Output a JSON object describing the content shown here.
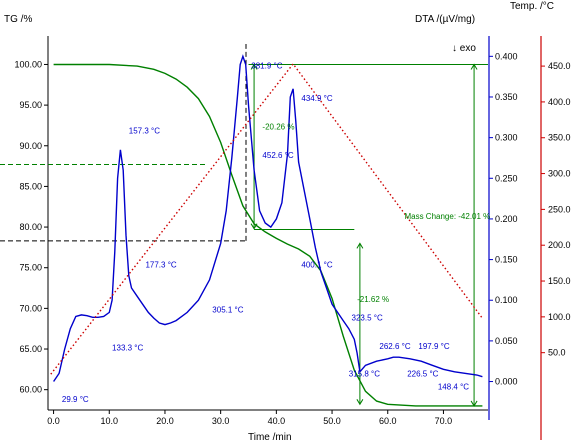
{
  "chart_data": {
    "type": "line",
    "title": "",
    "xlabel": "Time /min",
    "xlim": [
      -1,
      78
    ],
    "x_ticks": [
      "0.0",
      "10.0",
      "20.0",
      "30.0",
      "40.0",
      "50.0",
      "60.0",
      "70.0"
    ],
    "x_tick_values": [
      0,
      10,
      20,
      30,
      40,
      50,
      60,
      70
    ],
    "axes": {
      "tg": {
        "label": "TG /%",
        "color": "#000000",
        "ylim": [
          57.5,
          103.5
        ],
        "ticks": [
          "60.00",
          "65.00",
          "70.00",
          "75.00",
          "80.00",
          "85.00",
          "90.00",
          "95.00",
          "100.00"
        ],
        "tick_values": [
          60,
          65,
          70,
          75,
          80,
          85,
          90,
          95,
          100
        ]
      },
      "dta": {
        "label": "DTA /(µV/mg)",
        "color": "#0000cc",
        "ylim": [
          -0.035,
          0.425
        ],
        "ticks": [
          "0.000",
          "0.050",
          "0.100",
          "0.150",
          "0.200",
          "0.250",
          "0.300",
          "0.350",
          "0.400"
        ],
        "tick_values": [
          0,
          0.05,
          0.1,
          0.15,
          0.2,
          0.25,
          0.3,
          0.35,
          0.4
        ]
      },
      "temp": {
        "label": "Temp. /°C",
        "color": "#cc0000",
        "ylim": [
          -30,
          492
        ],
        "ticks": [
          "50.0",
          "100.0",
          "150.0",
          "200.0",
          "250.0",
          "300.0",
          "350.0",
          "400.0",
          "450.0"
        ],
        "tick_values": [
          50,
          100,
          150,
          200,
          250,
          300,
          350,
          400,
          450
        ]
      }
    },
    "exo_label": "↓ exo",
    "series": [
      {
        "axis": "tg",
        "color": "#008000",
        "style": "solid",
        "x": [
          0,
          5,
          10,
          15,
          18,
          20,
          22,
          24,
          26,
          28,
          30,
          32,
          34,
          36,
          38,
          40,
          42,
          44,
          46,
          48,
          50,
          52,
          54,
          56,
          58,
          60,
          65,
          70,
          75,
          77
        ],
        "values": [
          100,
          100,
          100,
          99.8,
          99.4,
          98.9,
          98.2,
          97.2,
          95.8,
          93.6,
          90.4,
          86.4,
          82.6,
          80.4,
          79.4,
          78.6,
          77.9,
          77.3,
          76.4,
          74.6,
          71.2,
          66.6,
          62.4,
          59.8,
          58.6,
          58.2,
          58.0,
          58.0,
          58.0,
          58.0
        ]
      },
      {
        "axis": "dta",
        "color": "#0000cc",
        "style": "solid",
        "x": [
          0,
          1,
          2,
          3,
          4,
          5,
          6,
          7,
          8,
          9,
          10,
          10.5,
          11,
          11.5,
          12,
          12.5,
          13,
          13.5,
          14,
          15,
          16,
          17,
          18,
          19,
          20,
          21,
          22,
          24,
          26,
          28,
          30,
          31,
          32,
          33,
          33.5,
          34,
          34.5,
          35,
          36,
          37,
          38,
          39,
          40,
          41,
          42,
          42.5,
          43,
          43.5,
          44,
          45,
          46,
          47,
          48,
          49,
          50,
          51,
          52,
          53,
          54,
          54.5,
          55,
          56,
          58,
          60,
          61,
          62,
          64,
          66,
          68,
          70,
          72,
          74,
          76,
          77
        ],
        "values": [
          0.0,
          0.01,
          0.04,
          0.065,
          0.08,
          0.082,
          0.081,
          0.079,
          0.079,
          0.08,
          0.085,
          0.1,
          0.16,
          0.25,
          0.285,
          0.26,
          0.18,
          0.13,
          0.115,
          0.105,
          0.095,
          0.085,
          0.078,
          0.072,
          0.07,
          0.072,
          0.075,
          0.085,
          0.1,
          0.125,
          0.17,
          0.21,
          0.275,
          0.35,
          0.39,
          0.4,
          0.39,
          0.34,
          0.26,
          0.21,
          0.195,
          0.19,
          0.2,
          0.22,
          0.28,
          0.35,
          0.36,
          0.32,
          0.27,
          0.235,
          0.2,
          0.165,
          0.135,
          0.115,
          0.095,
          0.085,
          0.075,
          0.065,
          0.052,
          0.035,
          0.012,
          0.02,
          0.025,
          0.028,
          0.03,
          0.03,
          0.028,
          0.025,
          0.02,
          0.015,
          0.012,
          0.01,
          0.008,
          0.006
        ]
      },
      {
        "axis": "temp",
        "color": "#cc0000",
        "style": "dotted",
        "x": [
          -0.5,
          43,
          77
        ],
        "values": [
          20,
          453,
          98
        ]
      }
    ],
    "annotations": [
      {
        "text": "29.9 °C",
        "x": 1.5,
        "axis": "dta",
        "y": -0.025,
        "color": "#0000cc"
      },
      {
        "text": "133.3 °C",
        "x": 10.5,
        "axis": "dta",
        "y": 0.038,
        "color": "#0000cc"
      },
      {
        "text": "157.3 °C",
        "x": 13.5,
        "axis": "dta",
        "y": 0.305,
        "color": "#0000cc"
      },
      {
        "text": "177.3 °C",
        "x": 16.5,
        "axis": "dta",
        "y": 0.14,
        "color": "#0000cc"
      },
      {
        "text": "305.1 °C",
        "x": 28.5,
        "axis": "dta",
        "y": 0.085,
        "color": "#0000cc"
      },
      {
        "text": "381.9 °C",
        "x": 35.5,
        "axis": "dta",
        "y": 0.385,
        "color": "#0000cc"
      },
      {
        "text": "434.9 °C",
        "x": 44.5,
        "axis": "dta",
        "y": 0.345,
        "color": "#0000cc"
      },
      {
        "text": "452.6 °C",
        "x": 37.5,
        "axis": "dta",
        "y": 0.275,
        "color": "#0000cc"
      },
      {
        "text": "400.1 °C",
        "x": 44.5,
        "axis": "dta",
        "y": 0.14,
        "color": "#0000cc"
      },
      {
        "text": "323.5 °C",
        "x": 53.5,
        "axis": "dta",
        "y": 0.075,
        "color": "#0000cc"
      },
      {
        "text": "262.6 °C",
        "x": 58.5,
        "axis": "dta",
        "y": 0.04,
        "color": "#0000cc"
      },
      {
        "text": "197.9 °C",
        "x": 65.5,
        "axis": "dta",
        "y": 0.04,
        "color": "#0000cc"
      },
      {
        "text": "315.8 °C",
        "x": 53.0,
        "axis": "dta",
        "y": 0.006,
        "color": "#0000cc"
      },
      {
        "text": "226.5 °C",
        "x": 63.5,
        "axis": "dta",
        "y": 0.006,
        "color": "#0000cc"
      },
      {
        "text": "148.4 °C",
        "x": 69.0,
        "axis": "dta",
        "y": -0.01,
        "color": "#0000cc"
      },
      {
        "text": "-20.26 %",
        "x": 37.5,
        "axis": "tg",
        "y": 92.0,
        "color": "#008000"
      },
      {
        "text": "-21.62 %",
        "x": 54.5,
        "axis": "tg",
        "y": 70.8,
        "color": "#008000"
      },
      {
        "text": "Mass Change: -42.01 %",
        "x": 63.0,
        "axis": "tg",
        "y": 81.0,
        "color": "#008000"
      }
    ]
  }
}
